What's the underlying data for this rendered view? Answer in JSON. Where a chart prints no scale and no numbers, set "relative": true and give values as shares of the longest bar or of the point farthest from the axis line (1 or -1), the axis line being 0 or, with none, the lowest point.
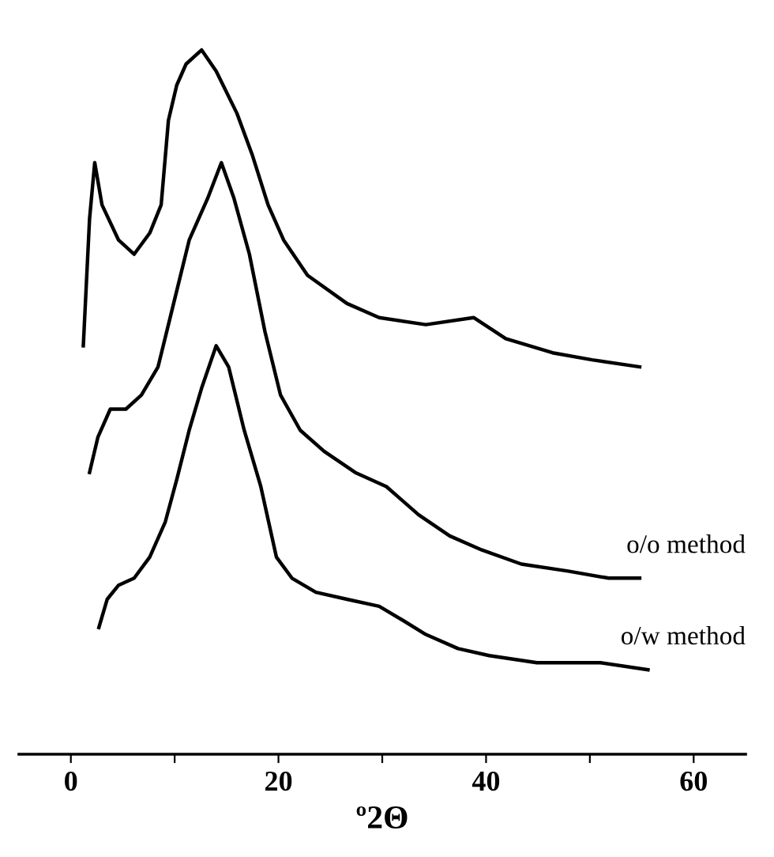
{
  "chart_data": {
    "type": "line",
    "xlabel": "º2Θ",
    "relative": true,
    "xlim": [
      -5,
      65
    ],
    "xticks": [
      0,
      {
        "value": 10,
        "label": null
      },
      20,
      {
        "value": 30,
        "label": null
      },
      40,
      {
        "value": 50,
        "label": null
      },
      60
    ],
    "tick_labels": "x",
    "grid": false,
    "legend": false,
    "marker": "none",
    "line_style": "solid",
    "series": [
      {
        "color": "#000000",
        "x": [
          1.2,
          1.8,
          2.3,
          3.0,
          4.6,
          6.1,
          7.6,
          8.7,
          9.4,
          10.2,
          11.1,
          12.6,
          14.0,
          16.0,
          17.5,
          19.0,
          20.5,
          22.8,
          26.6,
          29.7,
          34.2,
          38.8,
          41.9,
          46.4,
          50.2,
          54.8
        ],
        "values": [
          0.58,
          0.76,
          0.84,
          0.78,
          0.73,
          0.71,
          0.74,
          0.78,
          0.9,
          0.95,
          0.98,
          1.0,
          0.97,
          0.91,
          0.85,
          0.78,
          0.73,
          0.68,
          0.64,
          0.62,
          0.61,
          0.62,
          0.59,
          0.57,
          0.56,
          0.55
        ]
      },
      {
        "name": "o/o method",
        "color": "#000000",
        "x": [
          1.8,
          2.6,
          3.8,
          5.3,
          6.8,
          8.4,
          9.9,
          11.4,
          13.2,
          14.5,
          15.7,
          17.2,
          18.7,
          20.2,
          22.1,
          24.4,
          27.4,
          30.4,
          33.5,
          36.5,
          39.6,
          43.4,
          47.9,
          51.8,
          54.8
        ],
        "values": [
          0.4,
          0.45,
          0.49,
          0.49,
          0.51,
          0.55,
          0.64,
          0.73,
          0.79,
          0.84,
          0.79,
          0.71,
          0.6,
          0.51,
          0.46,
          0.43,
          0.4,
          0.38,
          0.34,
          0.31,
          0.29,
          0.27,
          0.26,
          0.25,
          0.25
        ]
      },
      {
        "name": "o/w method",
        "color": "#000000",
        "x": [
          2.7,
          3.5,
          4.6,
          6.1,
          7.6,
          9.1,
          10.2,
          11.4,
          12.6,
          14.0,
          15.2,
          16.7,
          18.3,
          19.8,
          21.3,
          23.6,
          26.6,
          29.7,
          32.0,
          34.2,
          37.3,
          40.3,
          44.9,
          51.0,
          55.6
        ],
        "values": [
          0.18,
          0.22,
          0.24,
          0.25,
          0.28,
          0.33,
          0.39,
          0.46,
          0.52,
          0.58,
          0.55,
          0.46,
          0.38,
          0.28,
          0.25,
          0.23,
          0.22,
          0.21,
          0.19,
          0.17,
          0.15,
          0.14,
          0.13,
          0.13,
          0.12
        ]
      }
    ]
  }
}
